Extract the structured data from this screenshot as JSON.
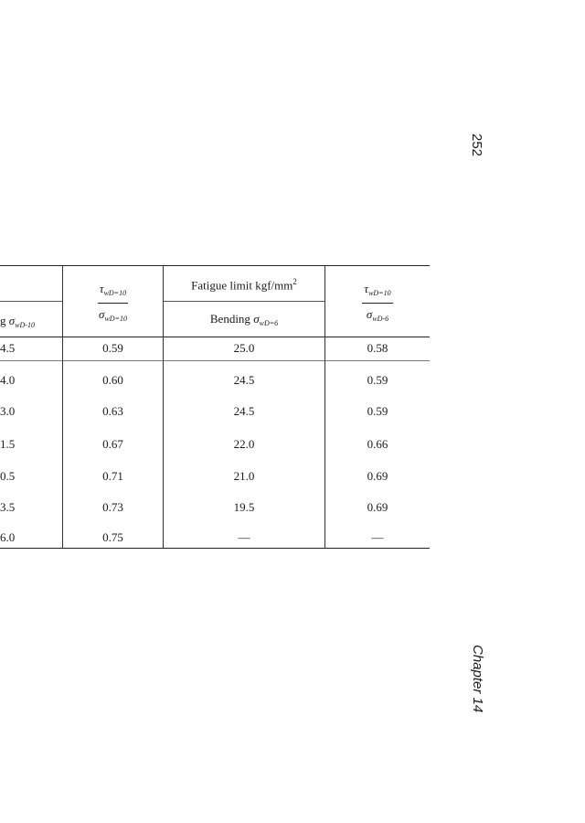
{
  "page_number": "252",
  "running_head": "Chapter 14",
  "table": {
    "headers": {
      "col0_sub": "g σwD-10",
      "col0_sub_text": "g",
      "col0_sub_symbol": "σ",
      "col0_sub_index": "wD-10",
      "col1_num_symbol": "τ",
      "col1_num_index": "wD=10",
      "col1_den_symbol": "σ",
      "col1_den_index": "wD=10",
      "col2_group": "Fatigue limit kgf/mm",
      "col2_group_sup": "2",
      "col2_sub_text": "Bending",
      "col2_sub_symbol": "σ",
      "col2_sub_index": "wD=6",
      "col3_num_symbol": "τ",
      "col3_num_index": "wD=10",
      "col3_den_symbol": "σ",
      "col3_den_index": "wD-6"
    },
    "rows": [
      [
        "4.5",
        "0.59",
        "25.0",
        "0.58"
      ],
      [
        "4.0",
        "0.60",
        "24.5",
        "0.59"
      ],
      [
        "3.0",
        "0.63",
        "24.5",
        "0.59"
      ],
      [
        "1.5",
        "0.67",
        "22.0",
        "0.66"
      ],
      [
        "0.5",
        "0.71",
        "21.0",
        "0.69"
      ],
      [
        "3.5",
        "0.73",
        "19.5",
        "0.69"
      ],
      [
        "6.0",
        "0.75",
        "—",
        "—"
      ]
    ]
  }
}
